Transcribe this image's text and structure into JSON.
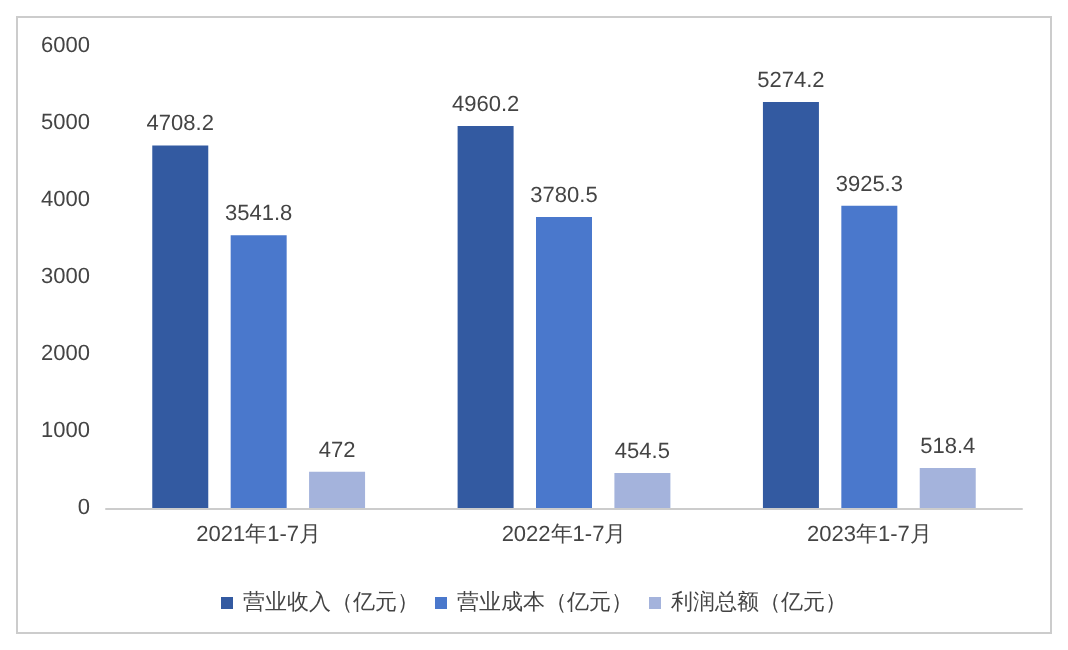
{
  "chart_data": {
    "type": "bar",
    "categories": [
      "2021年1-7月",
      "2022年1-7月",
      "2023年1-7月"
    ],
    "series": [
      {
        "name": "营业收入（亿元）",
        "color": "#335aa1",
        "values": [
          4708.2,
          4960.2,
          5274.2
        ]
      },
      {
        "name": "营业成本（亿元）",
        "color": "#4a78cc",
        "values": [
          3541.8,
          3780.5,
          3925.3
        ]
      },
      {
        "name": "利润总额（亿元）",
        "color": "#a4b3dc",
        "values": [
          472,
          454.5,
          518.4
        ]
      }
    ],
    "ylim": [
      0,
      6000
    ],
    "yticks": [
      0,
      1000,
      2000,
      3000,
      4000,
      5000,
      6000
    ],
    "grid": false,
    "legend": "bottom",
    "data_labels": true
  }
}
